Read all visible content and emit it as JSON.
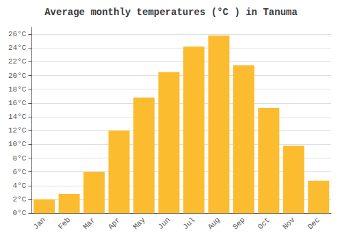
{
  "chart_data": {
    "type": "bar",
    "title": "Average monthly temperatures (°C ) in Tanuma",
    "categories": [
      "Jan",
      "Feb",
      "Mar",
      "Apr",
      "May",
      "Jun",
      "Jul",
      "Aug",
      "Sep",
      "Oct",
      "Nov",
      "Dec"
    ],
    "values": [
      2.0,
      2.8,
      6.0,
      12.0,
      16.8,
      20.5,
      24.2,
      25.8,
      21.5,
      15.3,
      9.8,
      4.7
    ],
    "color": "#FBBC30",
    "ylim": [
      0,
      27
    ],
    "yticks": [
      {
        "value": 0,
        "label": "0°C"
      },
      {
        "value": 2,
        "label": "2°C"
      },
      {
        "value": 4,
        "label": "4°C"
      },
      {
        "value": 6,
        "label": "6°C"
      },
      {
        "value": 8,
        "label": "8°C"
      },
      {
        "value": 10,
        "label": "10°C"
      },
      {
        "value": 12,
        "label": "12°C"
      },
      {
        "value": 14,
        "label": "14°C"
      },
      {
        "value": 16,
        "label": "16°C"
      },
      {
        "value": 18,
        "label": "18°C"
      },
      {
        "value": 20,
        "label": "20°C"
      },
      {
        "value": 22,
        "label": "22°C"
      },
      {
        "value": 24,
        "label": "24°C"
      },
      {
        "value": 26,
        "label": "26°C"
      }
    ],
    "grid": true
  }
}
